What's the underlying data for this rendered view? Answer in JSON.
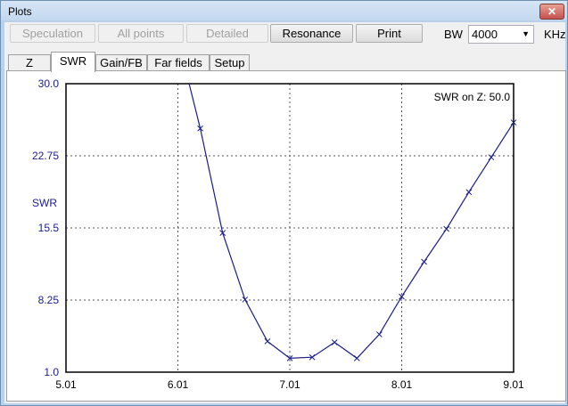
{
  "window": {
    "title": "Plots",
    "close_label": "✕"
  },
  "toolbar": {
    "speculation_label": "Speculation",
    "all_points_label": "All points",
    "detailed_label": "Detailed",
    "resonance_label": "Resonance",
    "print_label": "Print",
    "bw_label": "BW",
    "bw_value": "4000",
    "bw_unit": "KHz"
  },
  "tabs": [
    "Z",
    "SWR",
    "Gain/FB",
    "Far fields",
    "Setup"
  ],
  "active_tab": "SWR",
  "chart_data": {
    "type": "line",
    "annotation": "SWR on Z: 50.0",
    "ylabel": "SWR",
    "xlim": [
      5.01,
      9.01
    ],
    "ylim": [
      1.0,
      30.0
    ],
    "x_ticks": [
      "5.01",
      "6.01",
      "7.01",
      "8.01",
      "9.01"
    ],
    "y_ticks": [
      "30.0",
      "22.75",
      "15.5",
      "8.25",
      "1.0"
    ],
    "grid": true,
    "series_color": "#1c1c8c",
    "x": [
      6.11,
      6.21,
      6.41,
      6.61,
      6.81,
      7.01,
      7.21,
      7.41,
      7.61,
      7.81,
      8.01,
      8.21,
      8.41,
      8.61,
      8.81,
      9.01
    ],
    "values": [
      30.0,
      25.5,
      15.0,
      8.3,
      4.1,
      2.4,
      2.5,
      4.0,
      2.4,
      4.8,
      8.6,
      12.1,
      15.4,
      19.1,
      22.6,
      26.1
    ],
    "markers": [
      false,
      true,
      true,
      true,
      true,
      true,
      true,
      true,
      true,
      true,
      true,
      true,
      true,
      true,
      true,
      true
    ]
  }
}
